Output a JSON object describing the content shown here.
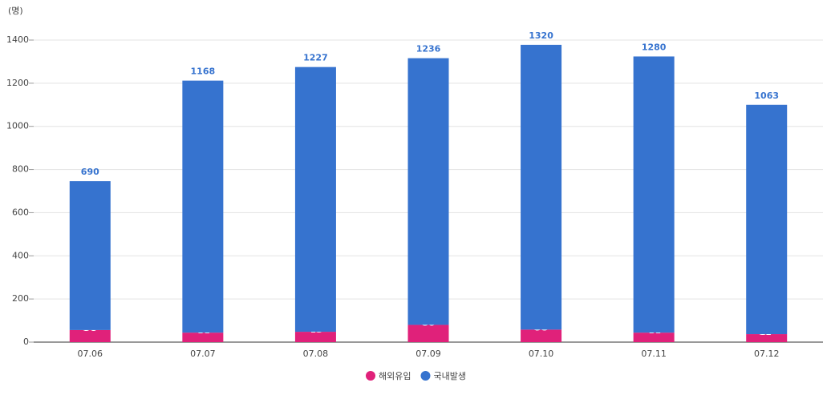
{
  "chart_data": {
    "type": "bar",
    "stacked": true,
    "y_unit_label": "(명)",
    "categories": [
      "07.06",
      "07.07",
      "07.08",
      "07.09",
      "07.10",
      "07.11",
      "07.12"
    ],
    "series": [
      {
        "name": "해외유입",
        "color": "#e0217a",
        "values": [
          56,
          44,
          48,
          80,
          58,
          44,
          37
        ]
      },
      {
        "name": "국내발생",
        "color": "#3673cf",
        "values": [
          690,
          1168,
          1227,
          1236,
          1320,
          1280,
          1063
        ]
      }
    ],
    "ylim": [
      0,
      1400
    ],
    "yticks": [
      0,
      200,
      400,
      600,
      800,
      1000,
      1200,
      1400
    ],
    "grid": true,
    "legend": "bottom"
  }
}
